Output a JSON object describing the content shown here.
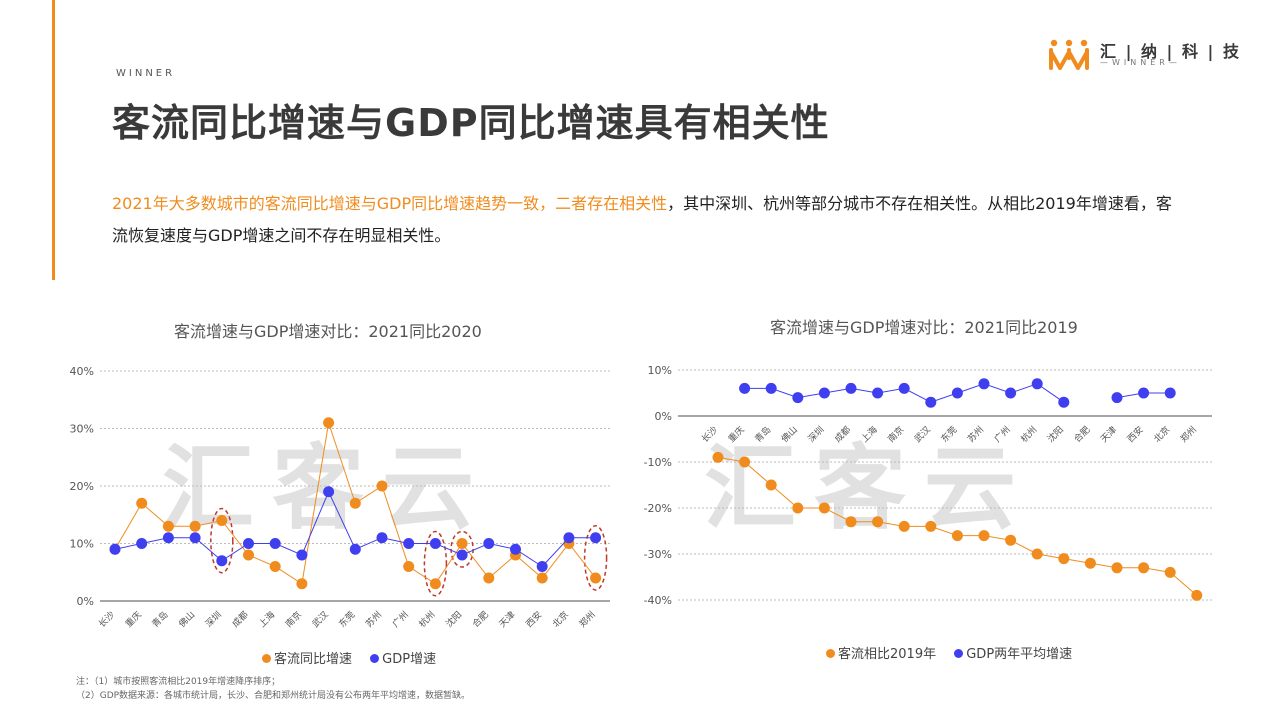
{
  "header": {
    "kicker": "WINNER",
    "title": "客流同比增速与GDP同比增速具有相关性",
    "logo_cn": "汇 | 纳 | 科 | 技",
    "logo_en": "—WINNER—"
  },
  "description": {
    "highlight": "2021年大多数城市的客流同比增速与GDP同比增速趋势一致，二者存在相关性",
    "rest": "，其中深圳、杭州等部分城市不存在相关性。从相比2019年增速看，客流恢复速度与GDP增速之间不存在明显相关性。"
  },
  "watermark": "汇客云",
  "colors": {
    "orange": "#f08c1e",
    "blue": "#3f3ff0",
    "accent_bar": "#f08c1e",
    "circle": "#c0392b"
  },
  "notes": [
    "注：（1）城市按照客流相比2019年增速降序排序；",
    "（2）GDP数据来源：各城市统计局，长沙、合肥和郑州统计局没有公布两年平均增速，数据暂缺。"
  ],
  "chart_data": [
    {
      "type": "line",
      "title": "客流增速与GDP增速对比：2021同比2020",
      "categories": [
        "长沙",
        "重庆",
        "青岛",
        "佛山",
        "深圳",
        "成都",
        "上海",
        "南京",
        "武汉",
        "东莞",
        "苏州",
        "广州",
        "杭州",
        "沈阳",
        "合肥",
        "天津",
        "西安",
        "北京",
        "郑州"
      ],
      "series": [
        {
          "name": "客流同比增速",
          "color": "#f08c1e",
          "values": [
            9,
            17,
            13,
            13,
            14,
            8,
            6,
            3,
            31,
            17,
            20,
            6,
            3,
            10,
            4,
            8,
            4,
            10,
            4
          ]
        },
        {
          "name": "GDP增速",
          "color": "#3f3ff0",
          "values": [
            9,
            10,
            11,
            11,
            7,
            10,
            10,
            8,
            19,
            9,
            11,
            10,
            10,
            8,
            10,
            9,
            6,
            11,
            11
          ]
        }
      ],
      "y_ticks": [
        "0%",
        "10%",
        "20%",
        "30%",
        "40%"
      ],
      "ylim": [
        0,
        40
      ],
      "grid": true,
      "circled_categories": [
        "深圳",
        "杭州",
        "沈阳",
        "郑州"
      ]
    },
    {
      "type": "line",
      "title": "客流增速与GDP增速对比：2021同比2019",
      "categories": [
        "长沙",
        "重庆",
        "青岛",
        "佛山",
        "深圳",
        "成都",
        "上海",
        "南京",
        "武汉",
        "东莞",
        "苏州",
        "广州",
        "杭州",
        "沈阳",
        "合肥",
        "天津",
        "西安",
        "北京",
        "郑州"
      ],
      "series": [
        {
          "name": "客流相比2019年",
          "color": "#f08c1e",
          "values": [
            -9,
            -10,
            -15,
            -20,
            -20,
            -23,
            -23,
            -24,
            -24,
            -26,
            -26,
            -27,
            -30,
            -31,
            -32,
            -33,
            -33,
            -34,
            -39
          ]
        },
        {
          "name": "GDP两年平均增速",
          "color": "#3f3ff0",
          "values": [
            null,
            6,
            6,
            4,
            5,
            6,
            5,
            6,
            3,
            5,
            7,
            5,
            7,
            3,
            null,
            4,
            5,
            5,
            null
          ]
        }
      ],
      "y_ticks": [
        "10%",
        "0%",
        "-10%",
        "-20%",
        "-30%",
        "-40%"
      ],
      "ylim": [
        -40,
        10
      ],
      "grid": true
    }
  ]
}
